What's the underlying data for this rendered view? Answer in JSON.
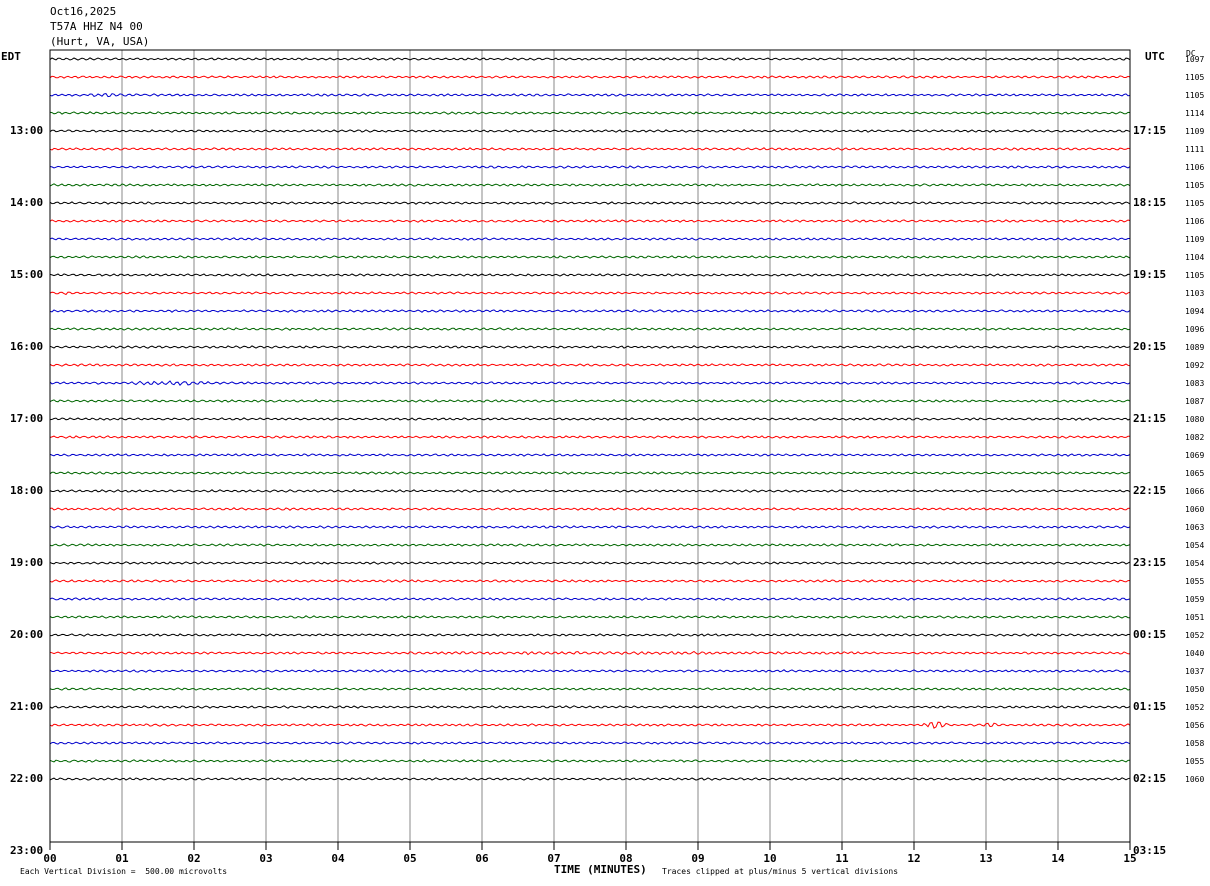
{
  "header": {
    "date": "Oct16,2025",
    "station": "T57A HHZ N4 00",
    "location": "(Hurt, VA, USA)"
  },
  "left_timezone": "EDT",
  "right_timezone": "UTC",
  "dc_label": "DC",
  "footer": {
    "vertical_division": "Each Vertical Division =  500.00 microvolts",
    "x_axis_label": "TIME (MINUTES)",
    "clip_note": "Traces clipped at plus/minus 5 vertical divisions"
  },
  "colors": {
    "trace_cycle": [
      "#000000",
      "#ff0000",
      "#0000cc",
      "#006600"
    ],
    "grid": "#888888",
    "frame": "#000000"
  },
  "chart_data": {
    "type": "line",
    "title": "",
    "xlabel": "TIME (MINUTES)",
    "ylabel": "",
    "x_range": [
      0,
      15
    ],
    "x_ticks": [
      "00",
      "01",
      "02",
      "03",
      "04",
      "05",
      "06",
      "07",
      "08",
      "09",
      "10",
      "11",
      "12",
      "13",
      "14",
      "15"
    ],
    "minutes_per_trace": 15,
    "total_slots": 44,
    "grid_vertical": true,
    "left_hour_labels": [
      "13:00",
      "14:00",
      "15:00",
      "16:00",
      "17:00",
      "18:00",
      "19:00",
      "20:00",
      "21:00",
      "22:00",
      "23:00"
    ],
    "right_hour_labels": [
      "17:15",
      "18:15",
      "19:15",
      "20:15",
      "21:15",
      "22:15",
      "23:15",
      "00:15",
      "01:15",
      "02:15",
      "03:15"
    ],
    "dc_offsets": [
      1097,
      1105,
      1105,
      1114,
      1109,
      1111,
      1106,
      1105,
      1105,
      1106,
      1109,
      1104,
      1105,
      1103,
      1094,
      1096,
      1089,
      1092,
      1083,
      1087,
      1080,
      1082,
      1069,
      1065,
      1066,
      1060,
      1063,
      1054,
      1054,
      1055,
      1059,
      1051,
      1052,
      1040,
      1037,
      1050,
      1052,
      1056,
      1058,
      1055,
      1060
    ],
    "events": [
      {
        "trace": 2,
        "start_min": 0.4,
        "end_min": 1.2,
        "amplitude": 2.2
      },
      {
        "trace": 13,
        "start_min": 0.1,
        "end_min": 0.4,
        "amplitude": 2.0
      },
      {
        "trace": 18,
        "start_min": 0.8,
        "end_min": 2.5,
        "amplitude": 2.6
      },
      {
        "trace": 33,
        "start_min": 0.0,
        "end_min": 15.0,
        "amplitude": 1.6
      },
      {
        "trace": 37,
        "start_min": 12.1,
        "end_min": 12.45,
        "amplitude": 5.0
      },
      {
        "trace": 37,
        "start_min": 12.95,
        "end_min": 13.15,
        "amplitude": 4.2
      }
    ]
  }
}
